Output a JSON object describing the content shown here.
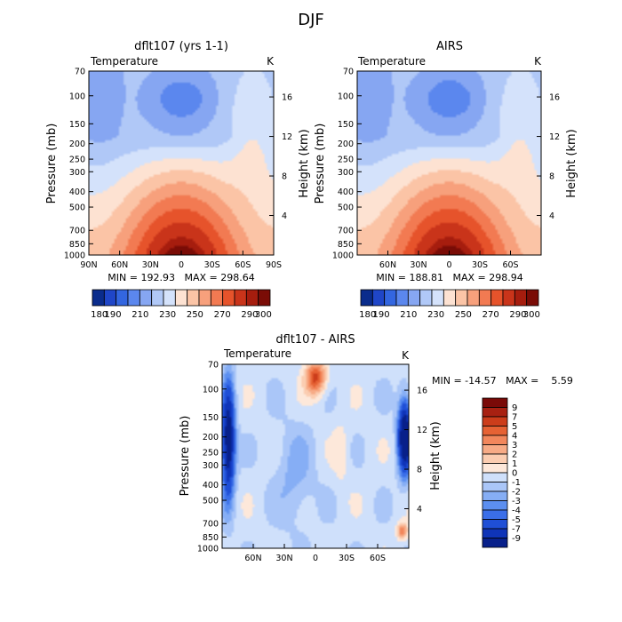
{
  "figure_title": "DJF",
  "colors": {
    "abs_palette": [
      "#0a2c8c",
      "#1f46c8",
      "#3366e0",
      "#5b87ee",
      "#86a6f2",
      "#b0c8f7",
      "#d4e2fb",
      "#fde2d2",
      "#fbc4a6",
      "#f7a07c",
      "#f27a52",
      "#e6532b",
      "#c9341a",
      "#a61d0e",
      "#7a0c06"
    ],
    "diff_palette": [
      "#08208a",
      "#0f34b8",
      "#1f4fd6",
      "#3a6ee8",
      "#5c8ff0",
      "#86aef5",
      "#aac6f8",
      "#cfe0fb",
      "#fde8da",
      "#fbcdb1",
      "#f7ab86",
      "#f2875c",
      "#e66234",
      "#cc3d1b",
      "#a82112",
      "#7a0a08"
    ]
  },
  "chart_data": [
    {
      "id": "model",
      "type": "heatmap",
      "title": "dflt107 (yrs 1-1)",
      "left_label": "Temperature",
      "right_label": "K",
      "ylabel": "Pressure (mb)",
      "ylabel_right": "Height (km)",
      "x_ticks": [
        "90N",
        "60N",
        "30N",
        "0",
        "30S",
        "60S",
        "90S"
      ],
      "x_values": [
        90,
        60,
        30,
        0,
        -30,
        -60,
        -90
      ],
      "xlim": [
        90,
        -90
      ],
      "y_ticks": [
        "70",
        "100",
        "150",
        "200",
        "250",
        "300",
        "400",
        "500",
        "700",
        "850",
        "1000"
      ],
      "y_values": [
        70,
        100,
        150,
        200,
        250,
        300,
        400,
        500,
        700,
        850,
        1000
      ],
      "ylim": [
        70,
        1000
      ],
      "height_ticks": [
        "4",
        "8",
        "12",
        "16"
      ],
      "height_values": [
        4,
        8,
        12,
        16
      ],
      "min": "192.93",
      "max": "298.64",
      "stats_text": "MIN = 192.93   MAX = 298.64",
      "colorbar_levels": [
        "180",
        "190",
        "210",
        "230",
        "250",
        "270",
        "290",
        "300"
      ],
      "colorbar_min": 175,
      "colorbar_max": 305
    },
    {
      "id": "obs",
      "type": "heatmap",
      "title": "AIRS",
      "left_label": "Temperature",
      "right_label": "K",
      "ylabel": "Pressure (mb)",
      "ylabel_right": "Height (km)",
      "x_ticks": [
        "60N",
        "30N",
        "0",
        "30S",
        "60S"
      ],
      "x_values": [
        60,
        30,
        0,
        -30,
        -60
      ],
      "xlim": [
        90,
        -90
      ],
      "y_ticks": [
        "70",
        "100",
        "150",
        "200",
        "250",
        "300",
        "400",
        "500",
        "700",
        "850",
        "1000"
      ],
      "y_values": [
        70,
        100,
        150,
        200,
        250,
        300,
        400,
        500,
        700,
        850,
        1000
      ],
      "ylim": [
        70,
        1000
      ],
      "height_ticks": [
        "4",
        "8",
        "12",
        "16"
      ],
      "height_values": [
        4,
        8,
        12,
        16
      ],
      "min": "188.81",
      "max": "298.94",
      "stats_text": "MIN = 188.81   MAX = 298.94",
      "colorbar_levels": [
        "180",
        "190",
        "210",
        "230",
        "250",
        "270",
        "290",
        "300"
      ],
      "colorbar_min": 175,
      "colorbar_max": 305
    },
    {
      "id": "diff",
      "type": "heatmap",
      "title": "dflt107 - AIRS",
      "left_label": "Temperature",
      "right_label": "K",
      "ylabel": "Pressure (mb)",
      "ylabel_right": "Height (km)",
      "x_ticks": [
        "60N",
        "30N",
        "0",
        "30S",
        "60S"
      ],
      "x_values": [
        60,
        30,
        0,
        -30,
        -60
      ],
      "xlim": [
        90,
        -90
      ],
      "y_ticks": [
        "70",
        "100",
        "150",
        "200",
        "250",
        "300",
        "400",
        "500",
        "700",
        "850",
        "1000"
      ],
      "y_values": [
        70,
        100,
        150,
        200,
        250,
        300,
        400,
        500,
        700,
        850,
        1000
      ],
      "ylim": [
        70,
        1000
      ],
      "height_ticks": [
        "4",
        "8",
        "12",
        "16"
      ],
      "height_values": [
        4,
        8,
        12,
        16
      ],
      "min": "-14.57",
      "max": "5.59",
      "stats_text": "MIN = -14.57   MAX =    5.59",
      "colorbar_levels": [
        "9",
        "7",
        "5",
        "4",
        "3",
        "2",
        "1",
        "0",
        "-1",
        "-2",
        "-3",
        "-4",
        "-5",
        "-7",
        "-9"
      ]
    }
  ]
}
